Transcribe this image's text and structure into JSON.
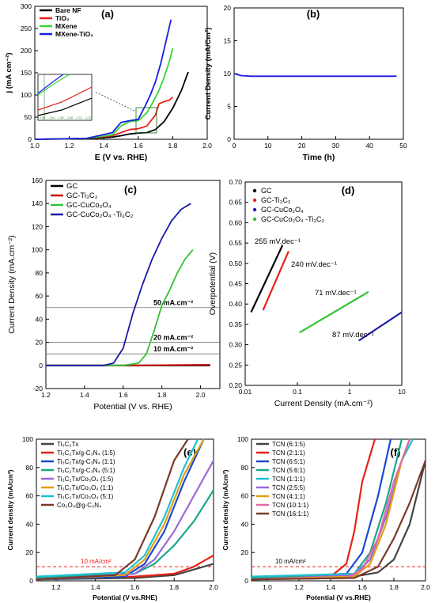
{
  "figure": {
    "background": "#ffffff"
  },
  "chart_data": [
    {
      "panel_label": "(a)",
      "type": "line",
      "xlabel": "E (V vs. RHE)",
      "ylabel": "j (mA cm⁻²)",
      "xlim": [
        1.0,
        2.0
      ],
      "ylim": [
        0,
        300
      ],
      "xticks": [
        "1.0",
        "1.2",
        "1.4",
        "1.6",
        "1.8",
        "2.0"
      ],
      "yticks": [
        "0",
        "50",
        "100",
        "150",
        "200",
        "250",
        "300"
      ],
      "legend_position": "top-left",
      "series": [
        {
          "name": "Bare NF",
          "color": "#000000",
          "x": [
            1.0,
            1.3,
            1.45,
            1.5,
            1.55,
            1.6,
            1.65,
            1.7,
            1.75,
            1.8,
            1.85,
            1.89
          ],
          "y": [
            0,
            1,
            5,
            8,
            12,
            14,
            15,
            22,
            40,
            70,
            110,
            152
          ]
        },
        {
          "name": "TiO₂",
          "color": "#e8201a",
          "x": [
            1.0,
            1.3,
            1.45,
            1.5,
            1.55,
            1.6,
            1.65,
            1.7,
            1.72,
            1.75,
            1.78,
            1.8
          ],
          "y": [
            0,
            2,
            8,
            15,
            22,
            24,
            30,
            55,
            80,
            85,
            88,
            95
          ]
        },
        {
          "name": "MXene",
          "color": "#33d633",
          "x": [
            1.0,
            1.3,
            1.45,
            1.5,
            1.55,
            1.6,
            1.65,
            1.68,
            1.72,
            1.75,
            1.78,
            1.8
          ],
          "y": [
            0,
            2,
            10,
            30,
            40,
            42,
            60,
            80,
            110,
            140,
            175,
            205
          ]
        },
        {
          "name": "MXene-TiO₂",
          "color": "#1a1ae6",
          "x": [
            1.0,
            1.3,
            1.45,
            1.5,
            1.55,
            1.6,
            1.64,
            1.67,
            1.7,
            1.73,
            1.76,
            1.79
          ],
          "y": [
            0,
            2,
            15,
            38,
            42,
            45,
            75,
            100,
            130,
            170,
            220,
            270
          ]
        }
      ],
      "inset_ticks": [
        "1.62",
        "1.64",
        "1.66",
        "1.68",
        "1.70",
        "1.72"
      ]
    },
    {
      "panel_label": "(b)",
      "type": "line",
      "xlabel": "Time (h)",
      "ylabel": "Current Density (mA/Cm²)",
      "xlim": [
        0,
        50
      ],
      "ylim": [
        0,
        20
      ],
      "xticks": [
        "0",
        "10",
        "20",
        "30",
        "40",
        "50"
      ],
      "yticks": [
        "0",
        "5",
        "10",
        "15",
        "20"
      ],
      "series": [
        {
          "name": "",
          "color": "#1a1ae6",
          "x": [
            0,
            2,
            5,
            10,
            20,
            30,
            40,
            48
          ],
          "y": [
            10.0,
            9.7,
            9.6,
            9.6,
            9.6,
            9.6,
            9.6,
            9.6
          ]
        }
      ]
    },
    {
      "panel_label": "(c)",
      "type": "line",
      "xlabel": "Potential (V vs. RHE)",
      "ylabel": "Current Density (mA.cm⁻²)",
      "xlim": [
        1.2,
        2.1
      ],
      "ylim": [
        -20,
        160
      ],
      "xticks": [
        "1.2",
        "1.4",
        "1.6",
        "1.8",
        "2.0"
      ],
      "yticks": [
        "-20",
        "0",
        "20",
        "40",
        "60",
        "80",
        "100",
        "120",
        "140",
        "160"
      ],
      "legend_position": "top-left",
      "reference_lines": [
        {
          "value": 50,
          "label": "50 mA.cm⁻²"
        },
        {
          "value": 20,
          "label": "20 mA.cm⁻²"
        },
        {
          "value": 10,
          "label": "10 mA.cm⁻²"
        }
      ],
      "series": [
        {
          "name": "GC",
          "color": "#000000",
          "x": [
            1.2,
            1.6,
            2.05
          ],
          "y": [
            0,
            0,
            0
          ]
        },
        {
          "name": "GC-Ti₃C₂",
          "color": "#cc0000",
          "x": [
            1.2,
            1.6,
            2.05
          ],
          "y": [
            0,
            0,
            0.5
          ]
        },
        {
          "name": "GC-CuCo₂O₄",
          "color": "#33c233",
          "x": [
            1.2,
            1.6,
            1.68,
            1.72,
            1.76,
            1.8,
            1.84,
            1.88,
            1.92,
            1.96
          ],
          "y": [
            0,
            0,
            2,
            10,
            30,
            52,
            65,
            80,
            92,
            100
          ]
        },
        {
          "name": "GC-CuCo₂O₄ -Ti₃C₂",
          "color": "#1a1aa6",
          "x": [
            1.2,
            1.5,
            1.55,
            1.6,
            1.65,
            1.7,
            1.75,
            1.8,
            1.85,
            1.9,
            1.95
          ],
          "y": [
            0,
            0,
            2,
            15,
            45,
            70,
            92,
            110,
            125,
            135,
            140
          ]
        }
      ]
    },
    {
      "panel_label": "(d)",
      "type": "scatter",
      "xlabel": "Current Density (mA.cm⁻²)",
      "ylabel": "Overpotential (V)",
      "xscale": "log",
      "xlim": [
        0.01,
        10
      ],
      "ylim": [
        0.2,
        0.7
      ],
      "xticks": [
        "0.01",
        "0.1",
        "1",
        "10"
      ],
      "yticks": [
        "0.20",
        "0.25",
        "0.30",
        "0.35",
        "0.40",
        "0.45",
        "0.50",
        "0.55",
        "0.60",
        "0.65",
        "0.70"
      ],
      "legend_position": "top-left",
      "annotations": [
        "255 mV.dec⁻¹",
        "240 mV.dec⁻¹",
        "71 mV.dec⁻¹",
        "87 mV.dec⁻¹"
      ],
      "series": [
        {
          "name": "GC",
          "color": "#000000",
          "x": [
            0.013,
            0.052
          ],
          "y": [
            0.38,
            0.545
          ]
        },
        {
          "name": "GC-Ti₃C₂",
          "color": "#e8201a",
          "x": [
            0.022,
            0.068
          ],
          "y": [
            0.385,
            0.53
          ]
        },
        {
          "name": "GC-CuCo₂O₄",
          "color": "#1a1aa6",
          "x": [
            1.5,
            10
          ],
          "y": [
            0.31,
            0.38
          ]
        },
        {
          "name": "GC-CuCo₂O₄ -Ti₃C₂",
          "color": "#33c233",
          "x": [
            0.11,
            2.3
          ],
          "y": [
            0.33,
            0.43
          ]
        }
      ]
    },
    {
      "panel_label": "(e)",
      "type": "line",
      "xlabel": "Potential (V vs.RHE)",
      "ylabel": "Current density (mA/cm²)",
      "xlim": [
        1.1,
        2.0
      ],
      "ylim": [
        0,
        100
      ],
      "xticks": [
        "1.2",
        "1.4",
        "1.6",
        "1.8",
        "2.0"
      ],
      "yticks": [
        "0",
        "20",
        "40",
        "60",
        "80",
        "100"
      ],
      "legend_position": "top-left",
      "reference_lines": [
        {
          "value": 10,
          "label": "10 mA/cm²"
        }
      ],
      "series": [
        {
          "name": "Ti₃C₂Tx",
          "color": "#444444",
          "x": [
            1.1,
            1.6,
            1.8,
            1.9,
            2.0
          ],
          "y": [
            1,
            2,
            4,
            8,
            12
          ]
        },
        {
          "name": "Ti₃C₂Tx/g-C₃N₄ (1:5)",
          "color": "#e8201a",
          "x": [
            1.1,
            1.6,
            1.8,
            1.9,
            2.0
          ],
          "y": [
            1.5,
            3,
            5,
            10,
            18
          ]
        },
        {
          "name": "Ti₃C₂Tx/g-C₃N₄ (1:1)",
          "color": "#1a4ad6",
          "x": [
            1.1,
            1.55,
            1.65,
            1.75,
            1.85,
            1.95
          ],
          "y": [
            1,
            3,
            12,
            35,
            70,
            100
          ]
        },
        {
          "name": "Ti₃C₂Tx/g-C₃N₄ (5:1)",
          "color": "#1aa68a",
          "x": [
            1.1,
            1.6,
            1.7,
            1.8,
            1.9,
            2.0
          ],
          "y": [
            2,
            5,
            12,
            25,
            42,
            64
          ]
        },
        {
          "name": "Ti₃C₂Tx/Co₃O₄ (1:5)",
          "color": "#9a6ad6",
          "x": [
            1.1,
            1.6,
            1.7,
            1.8,
            1.9,
            2.0
          ],
          "y": [
            1,
            5,
            15,
            35,
            60,
            85
          ]
        },
        {
          "name": "Ti₃C₂Tx/Co₃O₄ (1:1)",
          "color": "#e0a010",
          "x": [
            1.1,
            1.55,
            1.65,
            1.75,
            1.85,
            1.95
          ],
          "y": [
            1,
            4,
            15,
            40,
            75,
            100
          ]
        },
        {
          "name": "Ti₃C₂Tx/Co₃O₄ (5:1)",
          "color": "#20c0d0",
          "x": [
            1.1,
            1.55,
            1.65,
            1.75,
            1.85,
            1.92
          ],
          "y": [
            3,
            6,
            18,
            45,
            80,
            100
          ]
        },
        {
          "name": "Co₃O₄@g-C₃N₄",
          "color": "#7a3a2a",
          "x": [
            1.1,
            1.5,
            1.6,
            1.7,
            1.8,
            1.87
          ],
          "y": [
            1,
            4,
            15,
            45,
            85,
            100
          ]
        }
      ]
    },
    {
      "panel_label": "(f)",
      "type": "line",
      "xlabel": "Potential (V vs.RHE)",
      "ylabel": "Current density (mA/cm²)",
      "xlim": [
        0.9,
        2.0
      ],
      "ylim": [
        0,
        100
      ],
      "xticks": [
        "1.0",
        "1.2",
        "1.4",
        "1.6",
        "1.8",
        "2.0"
      ],
      "yticks": [
        "0",
        "20",
        "40",
        "60",
        "80",
        "100"
      ],
      "legend_position": "top-left",
      "reference_lines": [
        {
          "value": 10,
          "label": "10 mA/cm²"
        }
      ],
      "series": [
        {
          "name": "TCN (6:1:5)",
          "color": "#444444",
          "x": [
            0.9,
            1.5,
            1.7,
            1.8,
            1.9,
            2.0
          ],
          "y": [
            1,
            2,
            6,
            15,
            40,
            85
          ]
        },
        {
          "name": "TCN (2:1:1)",
          "color": "#e8201a",
          "x": [
            0.9,
            1.4,
            1.5,
            1.55,
            1.6,
            1.68
          ],
          "y": [
            1,
            3,
            12,
            35,
            70,
            100
          ]
        },
        {
          "name": "TCN (6:5:1)",
          "color": "#1a4ad6",
          "x": [
            0.9,
            1.5,
            1.6,
            1.7,
            1.78
          ],
          "y": [
            2,
            5,
            20,
            60,
            100
          ]
        },
        {
          "name": "TCN (5:6:1)",
          "color": "#1aa68a",
          "x": [
            0.9,
            1.55,
            1.65,
            1.75,
            1.85
          ],
          "y": [
            2,
            5,
            20,
            55,
            100
          ]
        },
        {
          "name": "TCN (1:1:1)",
          "color": "#20c0d0",
          "x": [
            0.9,
            1.55,
            1.65,
            1.75,
            1.85,
            1.92
          ],
          "y": [
            3,
            5,
            15,
            45,
            85,
            100
          ]
        },
        {
          "name": "TCN (2:5:5)",
          "color": "#9a6ad6",
          "x": [
            0.9,
            1.55,
            1.65,
            1.75,
            1.85,
            1.9
          ],
          "y": [
            1,
            4,
            15,
            45,
            85,
            100
          ]
        },
        {
          "name": "TCN (4:1:1)",
          "color": "#e0a010",
          "x": [
            0.9,
            1.55,
            1.65,
            1.75,
            1.85,
            1.9
          ],
          "y": [
            1,
            3,
            12,
            40,
            85,
            100
          ]
        },
        {
          "name": "TCN (10:1:1)",
          "color": "#e06aa6",
          "x": [
            0.9,
            1.5,
            1.6,
            1.7,
            1.8,
            1.9
          ],
          "y": [
            1,
            2,
            8,
            30,
            70,
            100
          ]
        },
        {
          "name": "TCN (16:1:1)",
          "color": "#7a3a2a",
          "x": [
            0.9,
            1.55,
            1.7,
            1.8,
            1.9,
            2.0
          ],
          "y": [
            1,
            2,
            10,
            30,
            55,
            85
          ]
        }
      ]
    }
  ]
}
